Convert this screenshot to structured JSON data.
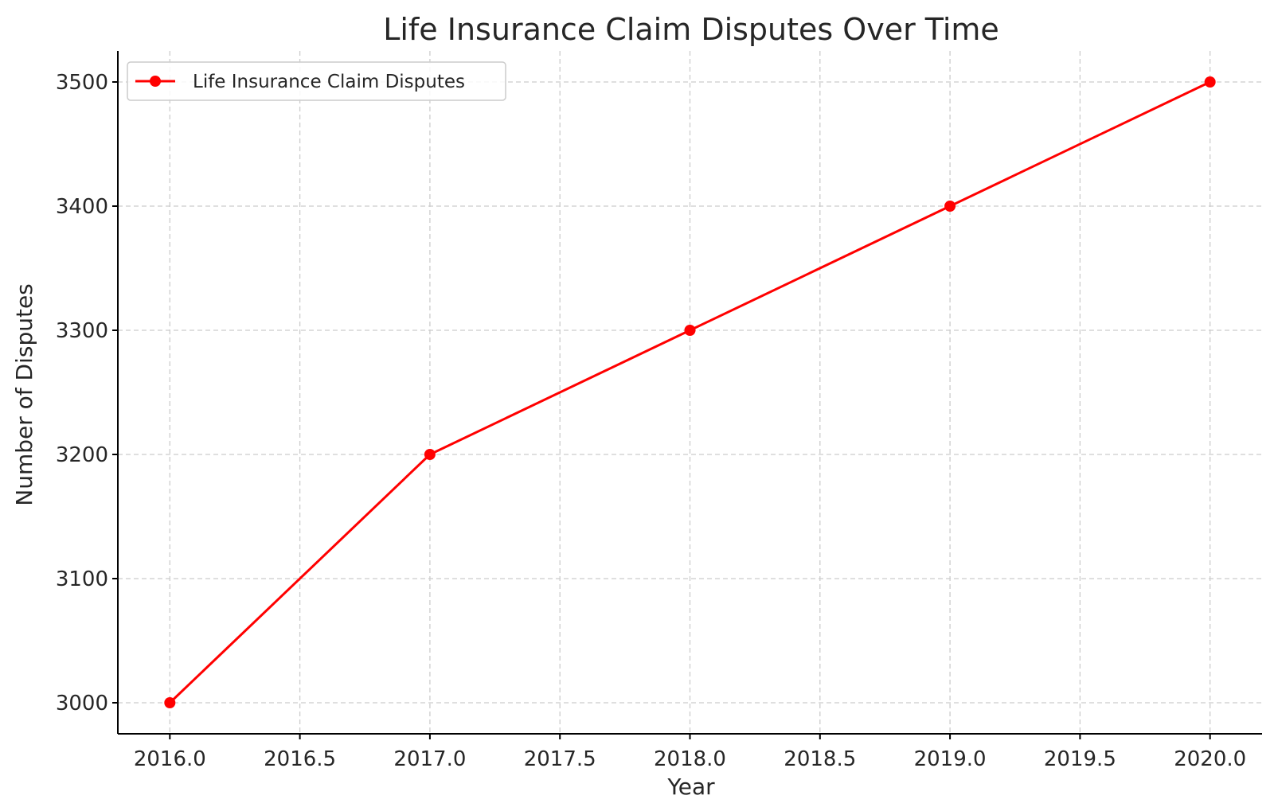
{
  "chart_data": {
    "type": "line",
    "title": "Life Insurance Claim Disputes Over Time",
    "xlabel": "Year",
    "ylabel": "Number of Disputes",
    "x": [
      2016,
      2017,
      2018,
      2019,
      2020
    ],
    "series": [
      {
        "name": "Life Insurance Claim Disputes",
        "values": [
          3000,
          3200,
          3300,
          3400,
          3500
        ],
        "color": "#ff0000",
        "marker": "circle"
      }
    ],
    "xlim": [
      2015.8,
      2020.2
    ],
    "ylim": [
      2975,
      3525
    ],
    "xticks": [
      "2016.0",
      "2016.5",
      "2017.0",
      "2017.5",
      "2018.0",
      "2018.5",
      "2019.0",
      "2019.5",
      "2020.0"
    ],
    "yticks": [
      "3000",
      "3100",
      "3200",
      "3300",
      "3400",
      "3500"
    ],
    "grid": true,
    "legend_position": "top-left"
  }
}
